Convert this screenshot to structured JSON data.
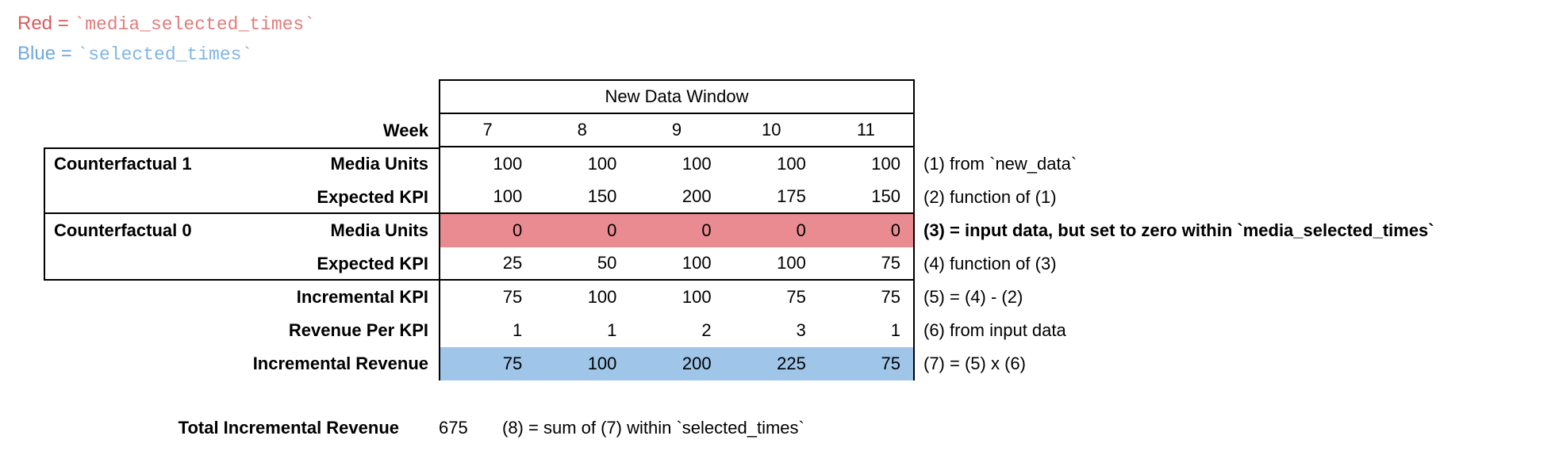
{
  "legend": {
    "red": {
      "label": "Red",
      "eq": " = ",
      "code": "`media_selected_times`"
    },
    "blue": {
      "label": "Blue",
      "eq": " = ",
      "code": "`selected_times`"
    }
  },
  "colors": {
    "red_label_text": "#db5b5b",
    "red_code_text": "#e17d7d",
    "blue_label_text": "#6fa8dc",
    "blue_code_text": "#82b5e3",
    "red_highlight": "#e98b90",
    "blue_highlight": "#9fc5e8",
    "border": "#000000"
  },
  "table": {
    "header": "New Data Window",
    "week_label": "Week",
    "weeks": [
      "7",
      "8",
      "9",
      "10",
      "11"
    ],
    "section_cf1": "Counterfactual 1",
    "section_cf0": "Counterfactual 0",
    "rows": [
      {
        "label": "Media Units",
        "values": [
          "100",
          "100",
          "100",
          "100",
          "100"
        ],
        "highlight": "none",
        "note": "(1) from `new_data`"
      },
      {
        "label": "Expected KPI",
        "values": [
          "100",
          "150",
          "200",
          "175",
          "150"
        ],
        "highlight": "none",
        "note": "(2) function of (1)"
      },
      {
        "label": "Media Units",
        "values": [
          "0",
          "0",
          "0",
          "0",
          "0"
        ],
        "highlight": "red",
        "note": "(3) = input data, but set to zero within `media_selected_times`"
      },
      {
        "label": "Expected KPI",
        "values": [
          "25",
          "50",
          "100",
          "100",
          "75"
        ],
        "highlight": "none",
        "note": "(4) function of (3)"
      },
      {
        "label": "Incremental KPI",
        "values": [
          "75",
          "100",
          "100",
          "75",
          "75"
        ],
        "highlight": "none",
        "note": "(5) = (4) - (2)"
      },
      {
        "label": "Revenue Per KPI",
        "values": [
          "1",
          "1",
          "2",
          "3",
          "1"
        ],
        "highlight": "none",
        "note": "(6) from input data"
      },
      {
        "label": "Incremental Revenue",
        "values": [
          "75",
          "100",
          "200",
          "225",
          "75"
        ],
        "highlight": "blue",
        "note": "(7) = (5) x (6)"
      }
    ]
  },
  "footer": {
    "label": "Total Incremental Revenue",
    "value": "675",
    "note": "(8) = sum of (7) within `selected_times`"
  }
}
